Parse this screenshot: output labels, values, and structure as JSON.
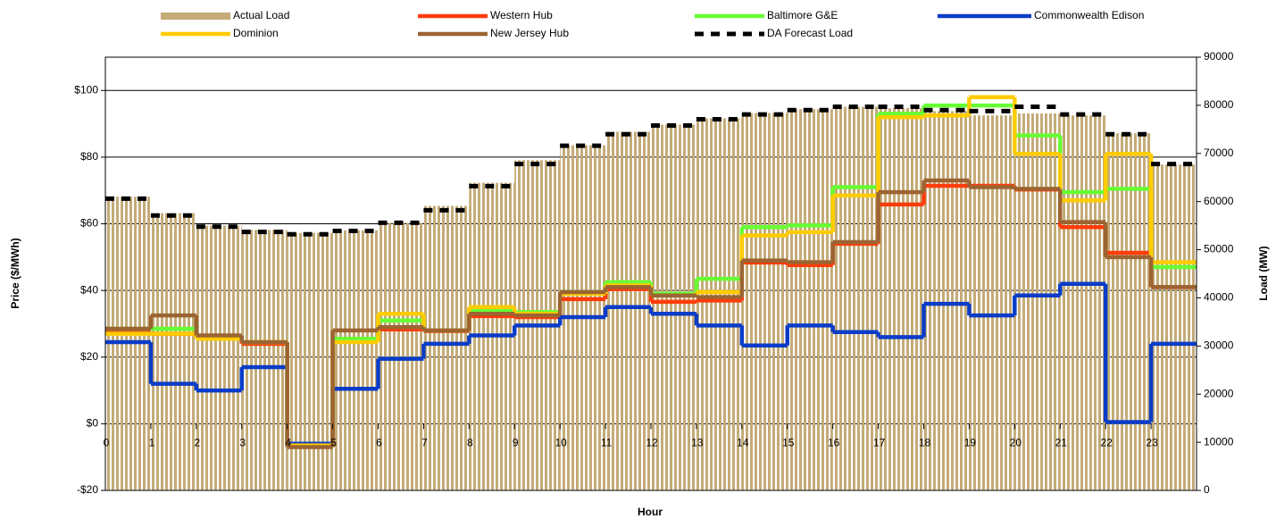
{
  "chart_data": {
    "type": "line",
    "step": true,
    "x_label": "Hour",
    "y_label": "Price ($/MWh)",
    "y2_label": "Load (MW)",
    "x": [
      0,
      1,
      2,
      3,
      4,
      5,
      6,
      7,
      8,
      9,
      10,
      11,
      12,
      13,
      14,
      15,
      16,
      17,
      18,
      19,
      20,
      21,
      22,
      23
    ],
    "xlim": [
      0,
      24
    ],
    "xticks": [
      0,
      1,
      2,
      3,
      4,
      5,
      6,
      7,
      8,
      9,
      10,
      11,
      12,
      13,
      14,
      15,
      16,
      17,
      18,
      19,
      20,
      21,
      22,
      23
    ],
    "ylim": [
      -20,
      110
    ],
    "yticks": [
      {
        "value": -20,
        "label": "-$20"
      },
      {
        "value": 0,
        "label": "$0"
      },
      {
        "value": 20,
        "label": "$20"
      },
      {
        "value": 40,
        "label": "$40"
      },
      {
        "value": 60,
        "label": "$60"
      },
      {
        "value": 80,
        "label": "$80"
      },
      {
        "value": 100,
        "label": "$100"
      }
    ],
    "y2lim": [
      0,
      90000
    ],
    "y2ticks": [
      0,
      10000,
      20000,
      30000,
      40000,
      50000,
      60000,
      70000,
      80000,
      90000
    ],
    "grid": true,
    "series": [
      {
        "name": "Actual Load",
        "type": "bar",
        "axis": "y2",
        "color": "#c4ab78",
        "values": [
          61000,
          57600,
          55000,
          54100,
          53500,
          54000,
          55600,
          59100,
          63900,
          68600,
          71700,
          74500,
          76000,
          77300,
          78400,
          79200,
          79700,
          79400,
          78800,
          77900,
          78300,
          77900,
          74200,
          67700
        ]
      },
      {
        "name": "Western Hub",
        "color": "#ff3c0a",
        "values": [
          27.3,
          27,
          25.5,
          24,
          -6.5,
          25,
          28.3,
          27.8,
          32.3,
          32,
          37.4,
          40.4,
          36.6,
          37,
          48.4,
          47.6,
          54,
          65.8,
          71.4,
          71.4,
          70.3,
          59,
          51.3,
          41
        ]
      },
      {
        "name": "Baltimore G&E",
        "color": "#66ff33",
        "values": [
          28.5,
          28.5,
          26,
          24.5,
          -6.5,
          25.5,
          31,
          28,
          34,
          33.5,
          39.5,
          42.5,
          39,
          43.5,
          59,
          59.5,
          71,
          93,
          95.5,
          95.5,
          86.5,
          69.5,
          70.5,
          47
        ]
      },
      {
        "name": "Commonwealth Edison",
        "color": "#0a3cc8",
        "values": [
          24.5,
          12,
          10,
          17,
          -6,
          10.5,
          19.5,
          24,
          26.5,
          29.5,
          32,
          35,
          33,
          29.5,
          23.5,
          29.5,
          27.5,
          26,
          36,
          32.5,
          38.5,
          42,
          0.5,
          24
        ]
      },
      {
        "name": "Dominion",
        "color": "#ffcc00",
        "values": [
          27,
          27,
          25.5,
          24.5,
          -6.5,
          24.5,
          33,
          28,
          35,
          33,
          39,
          41.5,
          38.5,
          39.5,
          56.5,
          57.5,
          68.5,
          92,
          92.5,
          98,
          81,
          67,
          81,
          48.5
        ]
      },
      {
        "name": "New Jersey Hub",
        "color": "#9c6432",
        "values": [
          28.5,
          32.5,
          26.5,
          24.5,
          -7,
          28,
          29,
          28,
          33,
          32.5,
          39.5,
          41,
          38.5,
          38,
          49,
          48.5,
          54.5,
          69.5,
          73,
          71,
          70.5,
          60.5,
          50,
          41
        ]
      },
      {
        "name": "DA Forecast Load",
        "axis": "y2",
        "color": "#000000",
        "dash": true,
        "values": [
          60600,
          57100,
          54800,
          53700,
          53200,
          53900,
          55600,
          58200,
          63200,
          67800,
          71600,
          74000,
          75800,
          77100,
          78100,
          79000,
          79700,
          79700,
          79000,
          78800,
          79700,
          78100,
          74000,
          67800
        ]
      }
    ]
  }
}
